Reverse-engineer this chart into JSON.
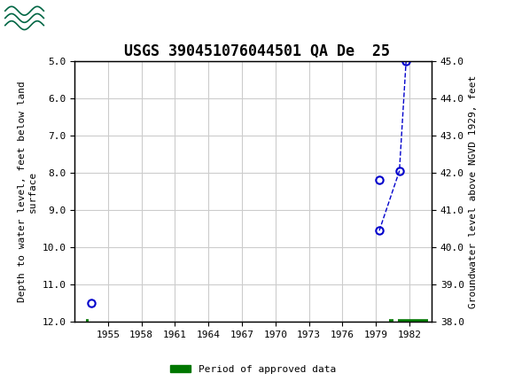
{
  "title": "USGS 390451076044501 QA De  25",
  "header_bg_color": "#006644",
  "plot_bg_color": "#ffffff",
  "grid_color": "#cccccc",
  "ylabel_left": "Depth to water level, feet below land\nsurface",
  "ylabel_right": "Groundwater level above NGVD 1929, feet",
  "xlim": [
    1952,
    1984
  ],
  "ylim_left": [
    5.0,
    12.0
  ],
  "ylim_right": [
    38.0,
    45.0
  ],
  "xtick_positions": [
    1955,
    1958,
    1961,
    1964,
    1967,
    1970,
    1973,
    1976,
    1979,
    1982
  ],
  "ytick_left": [
    5.0,
    6.0,
    7.0,
    8.0,
    9.0,
    10.0,
    11.0,
    12.0
  ],
  "ytick_right": [
    38.0,
    39.0,
    40.0,
    41.0,
    42.0,
    43.0,
    44.0,
    45.0
  ],
  "isolated_point_x": [
    1953.5
  ],
  "isolated_point_y": [
    11.5
  ],
  "connected_points_x": [
    1979.3,
    1981.1,
    1981.7
  ],
  "connected_points_y": [
    9.55,
    7.95,
    5.0
  ],
  "standalone_point_x": [
    1979.3
  ],
  "standalone_point_y": [
    8.2
  ],
  "line_color": "#0000cc",
  "marker_face_color": "none",
  "marker_edge_color": "#0000cc",
  "marker_size": 6,
  "approved_data_segments": [
    {
      "x_start": 1953.0,
      "x_end": 1953.3
    },
    {
      "x_start": 1980.2,
      "x_end": 1980.6
    },
    {
      "x_start": 1981.0,
      "x_end": 1983.7
    }
  ],
  "approved_data_y": 12.0,
  "approved_data_color": "#007700",
  "approved_data_linewidth": 4,
  "legend_label": "Period of approved data",
  "title_fontsize": 12,
  "axis_label_fontsize": 8,
  "tick_fontsize": 8,
  "font_family": "monospace"
}
